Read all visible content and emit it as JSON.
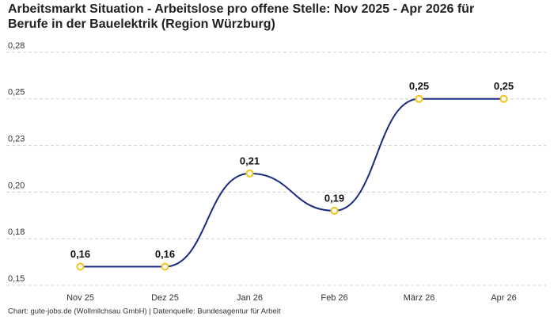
{
  "chart_data": {
    "type": "line",
    "title": "Arbeitsmarkt Situation - Arbeitslose pro offene Stelle: Nov 2025 - Apr 2026 für Berufe in der Bauelektrik (Region Würzburg)",
    "caption": "Chart: gute-jobs.de (Wollmilchsau GmbH) | Datenquelle: Bundesagentur für Arbeit",
    "categories": [
      "Nov 25",
      "Dez 25",
      "Jan 26",
      "Feb 26",
      "März 26",
      "Apr 26"
    ],
    "values": [
      0.16,
      0.16,
      0.21,
      0.19,
      0.25,
      0.25
    ],
    "value_labels": [
      "0,16",
      "0,16",
      "0,21",
      "0,19",
      "0,25",
      "0,25"
    ],
    "color": "#1b2a80",
    "marker_color": "#f2c318",
    "ylim": [
      0.15,
      0.275
    ],
    "yticks": [
      {
        "value": 0.15,
        "label": "0,15"
      },
      {
        "value": 0.175,
        "label": "0,18"
      },
      {
        "value": 0.2,
        "label": "0,20"
      },
      {
        "value": 0.225,
        "label": "0,23"
      },
      {
        "value": 0.25,
        "label": "0,25"
      },
      {
        "value": 0.275,
        "label": "0,28"
      }
    ],
    "grid": true
  }
}
